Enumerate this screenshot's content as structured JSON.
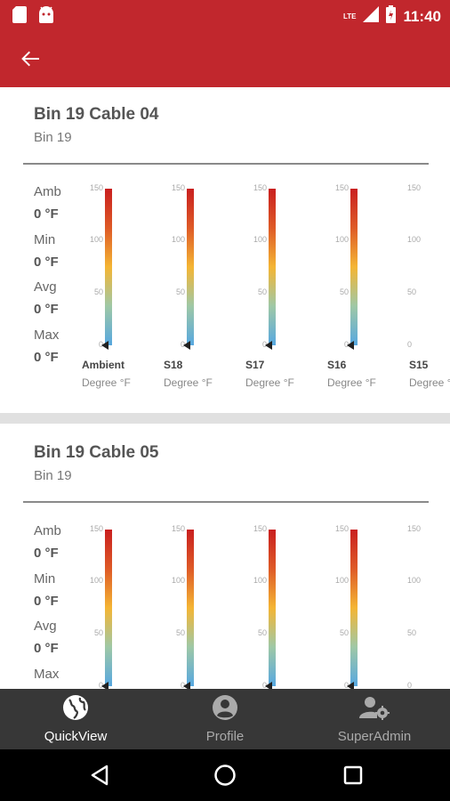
{
  "status_bar": {
    "time": "11:40",
    "network": "LTE",
    "icons": [
      "sd-card-icon",
      "android-icon",
      "signal-icon",
      "battery-icon"
    ]
  },
  "app_bar": {
    "back_icon": "arrow-back-icon",
    "color": "#c1272d"
  },
  "cards": [
    {
      "title": "Bin 19 Cable 04",
      "subtitle": "Bin 19",
      "stats": [
        {
          "label": "Amb",
          "value": "0 °F"
        },
        {
          "label": "Min",
          "value": "0 °F"
        },
        {
          "label": "Avg",
          "value": "0 °F"
        },
        {
          "label": "Max",
          "value": "0 °F"
        }
      ],
      "gauges": [
        {
          "name": "Ambient",
          "unit": "Degree °F",
          "value": 0
        },
        {
          "name": "S18",
          "unit": "Degree °F",
          "value": 0
        },
        {
          "name": "S17",
          "unit": "Degree °F",
          "value": 0
        },
        {
          "name": "S16",
          "unit": "Degree °F",
          "value": 0
        },
        {
          "name": "S15",
          "unit": "Degree °F",
          "value": 0
        }
      ],
      "ticks": [
        "150",
        "100",
        "50",
        "0"
      ]
    },
    {
      "title": "Bin 19 Cable 05",
      "subtitle": "Bin 19",
      "stats": [
        {
          "label": "Amb",
          "value": "0 °F"
        },
        {
          "label": "Min",
          "value": "0 °F"
        },
        {
          "label": "Avg",
          "value": "0 °F"
        },
        {
          "label": "Max",
          "value": ""
        }
      ],
      "gauges": [
        {
          "name": "",
          "unit": "",
          "value": 0
        },
        {
          "name": "",
          "unit": "",
          "value": 0
        },
        {
          "name": "",
          "unit": "",
          "value": 0
        },
        {
          "name": "",
          "unit": "",
          "value": 0
        },
        {
          "name": "",
          "unit": "",
          "value": 0
        }
      ],
      "ticks": [
        "150",
        "100",
        "50",
        "0"
      ]
    }
  ],
  "bottom_nav": [
    {
      "label": "QuickView",
      "icon": "globe-icon",
      "active": true
    },
    {
      "label": "Profile",
      "icon": "account-circle-icon",
      "active": false
    },
    {
      "label": "SuperAdmin",
      "icon": "admin-settings-icon",
      "active": false
    }
  ],
  "system_nav": [
    "back-triangle-icon",
    "home-circle-icon",
    "recents-square-icon"
  ]
}
